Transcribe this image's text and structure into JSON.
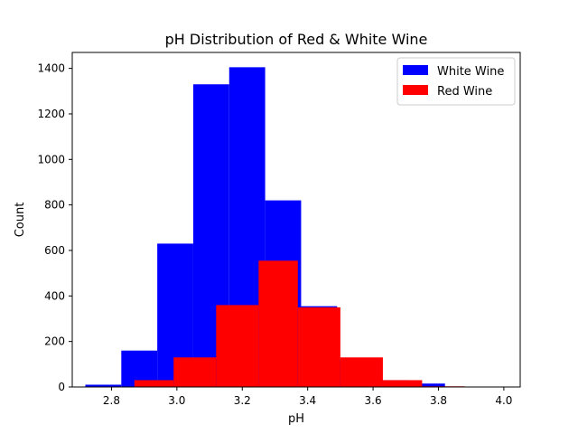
{
  "chart_data": {
    "type": "bar",
    "title": "pH Distribution of Red & White Wine",
    "xlabel": "pH",
    "ylabel": "Count",
    "xlim": [
      2.68,
      4.05
    ],
    "ylim": [
      0,
      1470
    ],
    "xticks": [
      2.8,
      3.0,
      3.2,
      3.4,
      3.6,
      3.8,
      4.0
    ],
    "xtick_labels": [
      "2.8",
      "3.0",
      "3.2",
      "3.4",
      "3.6",
      "3.8",
      "4.0"
    ],
    "yticks": [
      0,
      200,
      400,
      600,
      800,
      1000,
      1200,
      1400
    ],
    "ytick_labels": [
      "0",
      "200",
      "400",
      "600",
      "800",
      "1000",
      "1200",
      "1400"
    ],
    "grid": false,
    "legend_position": "top-right",
    "series": [
      {
        "name": "White Wine",
        "color": "#0000ff",
        "bins": [
          {
            "x0": 2.72,
            "x1": 2.83,
            "count": 10
          },
          {
            "x0": 2.83,
            "x1": 2.94,
            "count": 160
          },
          {
            "x0": 2.94,
            "x1": 3.05,
            "count": 630
          },
          {
            "x0": 3.05,
            "x1": 3.16,
            "count": 1330
          },
          {
            "x0": 3.16,
            "x1": 3.27,
            "count": 1405
          },
          {
            "x0": 3.27,
            "x1": 3.38,
            "count": 820
          },
          {
            "x0": 3.38,
            "x1": 3.49,
            "count": 355
          },
          {
            "x0": 3.49,
            "x1": 3.6,
            "count": 120
          },
          {
            "x0": 3.6,
            "x1": 3.71,
            "count": 30
          },
          {
            "x0": 3.71,
            "x1": 3.82,
            "count": 15
          }
        ]
      },
      {
        "name": "Red Wine",
        "color": "#ff0000",
        "bins": [
          {
            "x0": 2.87,
            "x1": 2.99,
            "count": 30
          },
          {
            "x0": 2.99,
            "x1": 3.12,
            "count": 130
          },
          {
            "x0": 3.12,
            "x1": 3.25,
            "count": 360
          },
          {
            "x0": 3.25,
            "x1": 3.37,
            "count": 555
          },
          {
            "x0": 3.37,
            "x1": 3.5,
            "count": 350
          },
          {
            "x0": 3.5,
            "x1": 3.63,
            "count": 130
          },
          {
            "x0": 3.63,
            "x1": 3.75,
            "count": 30
          },
          {
            "x0": 3.75,
            "x1": 3.88,
            "count": 3
          },
          {
            "x0": 3.88,
            "x1": 4.01,
            "count": 2
          }
        ]
      }
    ]
  }
}
